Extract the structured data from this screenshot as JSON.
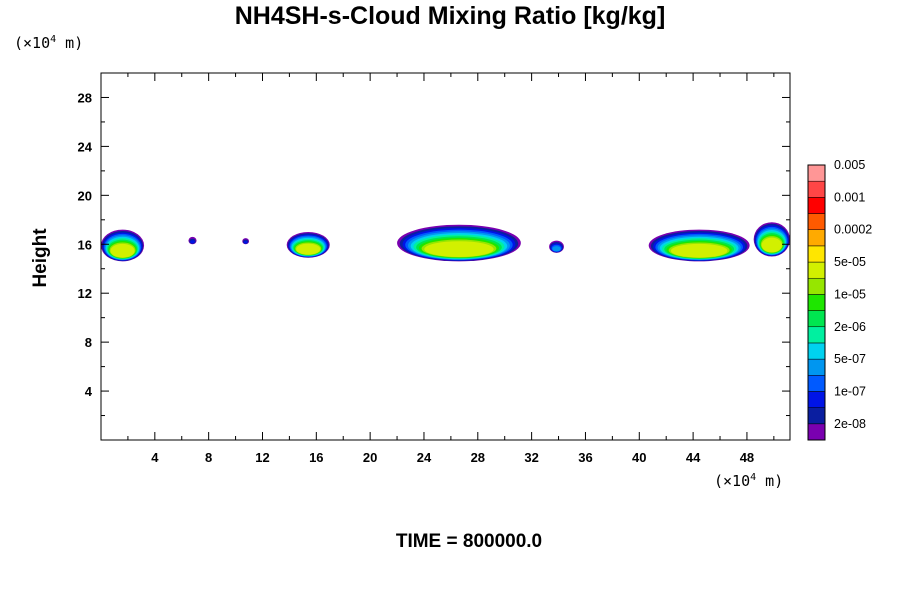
{
  "chart_data": {
    "type": "heatmap",
    "title": "NH4SH-s-Cloud Mixing Ratio [kg/kg]",
    "ylabel": "Height",
    "xlabel": "",
    "x_unit": "(×10⁴ m)",
    "y_unit": "(×10⁴ m)",
    "x_unit_base": "(×10",
    "x_unit_exp": "4",
    "x_unit_tail": " m)",
    "y_unit_base": "(×10",
    "y_unit_exp": "4",
    "y_unit_tail": " m)",
    "xlim": [
      0,
      51.2
    ],
    "ylim": [
      0,
      30
    ],
    "x_ticks": [
      4,
      8,
      12,
      16,
      20,
      24,
      28,
      32,
      36,
      40,
      44,
      48
    ],
    "x_tick_labels": [
      "4",
      "8",
      "12",
      "16",
      "20",
      "24",
      "28",
      "32",
      "36",
      "40",
      "44",
      "48"
    ],
    "y_ticks": [
      4,
      8,
      12,
      16,
      20,
      24,
      28
    ],
    "y_tick_labels": [
      "4",
      "8",
      "12",
      "16",
      "20",
      "24",
      "28"
    ],
    "colorbar": {
      "colors": [
        "#7a00b0",
        "#0a1ea0",
        "#0014e6",
        "#005aff",
        "#0096f0",
        "#00d2f0",
        "#00f0a0",
        "#00e650",
        "#1ee600",
        "#96e600",
        "#d2f000",
        "#ffe600",
        "#ffaa00",
        "#ff5a00",
        "#ff0000",
        "#ff4646",
        "#ff9696"
      ],
      "labels": [
        "2e-08",
        "1e-07",
        "5e-07",
        "2e-06",
        "1e-05",
        "5e-05",
        "0.0002",
        "0.001",
        "0.005"
      ]
    },
    "cloud_features": [
      {
        "name": "cloud-left",
        "x": [
          0.0,
          3.2
        ],
        "y": [
          14.6,
          17.2
        ],
        "peak": "5e-05"
      },
      {
        "name": "cloud-blob-a",
        "x": [
          6.5,
          7.1
        ],
        "y": [
          16.0,
          16.6
        ],
        "peak": "1e-07"
      },
      {
        "name": "cloud-blob-b",
        "x": [
          10.5,
          11.0
        ],
        "y": [
          16.0,
          16.5
        ],
        "peak": "1e-07"
      },
      {
        "name": "cloud-a",
        "x": [
          13.8,
          17.0
        ],
        "y": [
          14.9,
          17.0
        ],
        "peak": "5e-05"
      },
      {
        "name": "cloud-main",
        "x": [
          22.0,
          31.2
        ],
        "y": [
          14.6,
          17.6
        ],
        "peak": "5e-05"
      },
      {
        "name": "cloud-small",
        "x": [
          33.3,
          34.4
        ],
        "y": [
          15.3,
          16.3
        ],
        "peak": "5e-07"
      },
      {
        "name": "cloud-right",
        "x": [
          40.7,
          48.2
        ],
        "y": [
          14.6,
          17.2
        ],
        "peak": "5e-05"
      },
      {
        "name": "cloud-edge",
        "x": [
          48.5,
          51.2
        ],
        "y": [
          15.0,
          17.8
        ],
        "peak": "5e-05"
      }
    ]
  },
  "footer": {
    "time_label": "TIME = 800000.0"
  }
}
